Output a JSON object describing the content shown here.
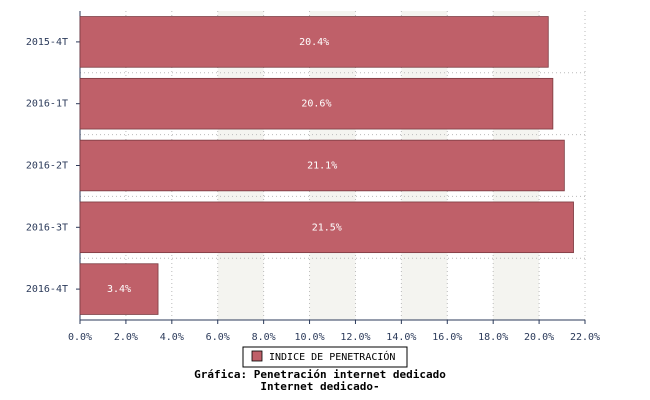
{
  "chart_data": {
    "type": "barh",
    "title": "Gráfica: Penetración internet dedicado",
    "subtitle": "Internet dedicado-",
    "categories": [
      "2015-4T",
      "2016-1T",
      "2016-2T",
      "2016-3T",
      "2016-4T"
    ],
    "series": [
      {
        "name": "INDICE DE PENETRACIÓN",
        "color": "#bf6069",
        "values": [
          20.4,
          20.6,
          21.1,
          21.5,
          3.4
        ],
        "value_labels": [
          "20.4%",
          "20.6%",
          "21.1%",
          "21.5%",
          "3.4%"
        ]
      }
    ],
    "xlim": [
      0,
      22
    ],
    "xticks": [
      {
        "value": 0,
        "label": "0.0%"
      },
      {
        "value": 2,
        "label": "2.0%"
      },
      {
        "value": 4,
        "label": "4.0%"
      },
      {
        "value": 6,
        "label": "6.0%"
      },
      {
        "value": 8,
        "label": "8.0%"
      },
      {
        "value": 10,
        "label": "10.0%"
      },
      {
        "value": 12,
        "label": "12.0%"
      },
      {
        "value": 14,
        "label": "14.0%"
      },
      {
        "value": 16,
        "label": "16.0%"
      },
      {
        "value": 18,
        "label": "18.0%"
      },
      {
        "value": 20,
        "label": "20.0%"
      },
      {
        "value": 22,
        "label": "22.0%"
      }
    ],
    "grid": true
  }
}
